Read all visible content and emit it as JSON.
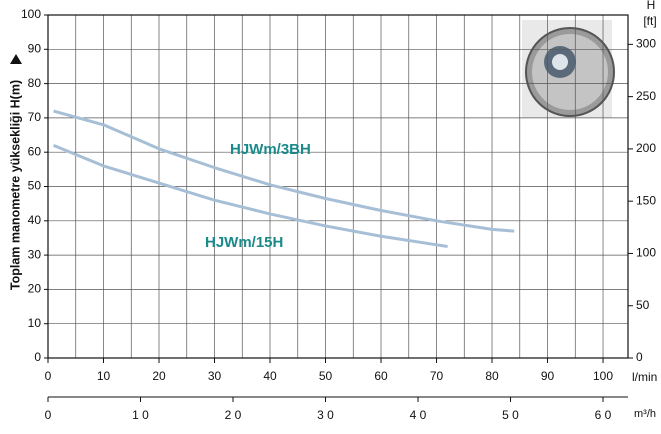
{
  "chart_data": {
    "type": "line",
    "y_label": "Toplam manometre yüksekliği H(m)",
    "y2_label": "H",
    "y2_unit": "[ft]",
    "x_label": "l/min",
    "x2_label": "m³/h",
    "annotations": [
      "HJWm/3BH",
      "HJWm/15H"
    ],
    "series": [
      {
        "name": "HJWm/3BH",
        "color": "#a7bfd6",
        "x": [
          1,
          10,
          20,
          30,
          40,
          50,
          60,
          70,
          80,
          84
        ],
        "values": [
          72,
          68,
          61,
          55.5,
          50.5,
          46.5,
          43,
          40,
          37.5,
          37
        ]
      },
      {
        "name": "HJWm/15H",
        "color": "#a7bfd6",
        "x": [
          1,
          10,
          20,
          30,
          40,
          50,
          60,
          70,
          72
        ],
        "values": [
          62,
          56,
          51,
          46,
          42,
          38.5,
          35.5,
          33,
          32.5
        ]
      }
    ],
    "xlim": [
      0,
      104.5
    ],
    "xticks": [
      0,
      10,
      20,
      30,
      40,
      50,
      60,
      70,
      80,
      90,
      100
    ],
    "xminorticks": [
      5,
      15,
      25,
      35,
      45,
      55,
      65,
      75,
      85,
      95
    ],
    "ylim": [
      0,
      100
    ],
    "yticks": [
      0,
      10,
      20,
      30,
      40,
      50,
      60,
      70,
      80,
      90,
      100
    ],
    "y2lim": [
      0,
      328.08
    ],
    "y2ticks": [
      0,
      50,
      100,
      150,
      200,
      250,
      300
    ],
    "x2lim": [
      0,
      62.7
    ],
    "x2ticks": [
      {
        "value": 0,
        "label": "0"
      },
      {
        "value": 10,
        "label": "1 0"
      },
      {
        "value": 20,
        "label": "2 0"
      },
      {
        "value": 30,
        "label": "3 0"
      },
      {
        "value": 40,
        "label": "4 0"
      },
      {
        "value": 50,
        "label": "5 0"
      },
      {
        "value": 60,
        "label": "6 0"
      }
    ],
    "grid": true
  }
}
